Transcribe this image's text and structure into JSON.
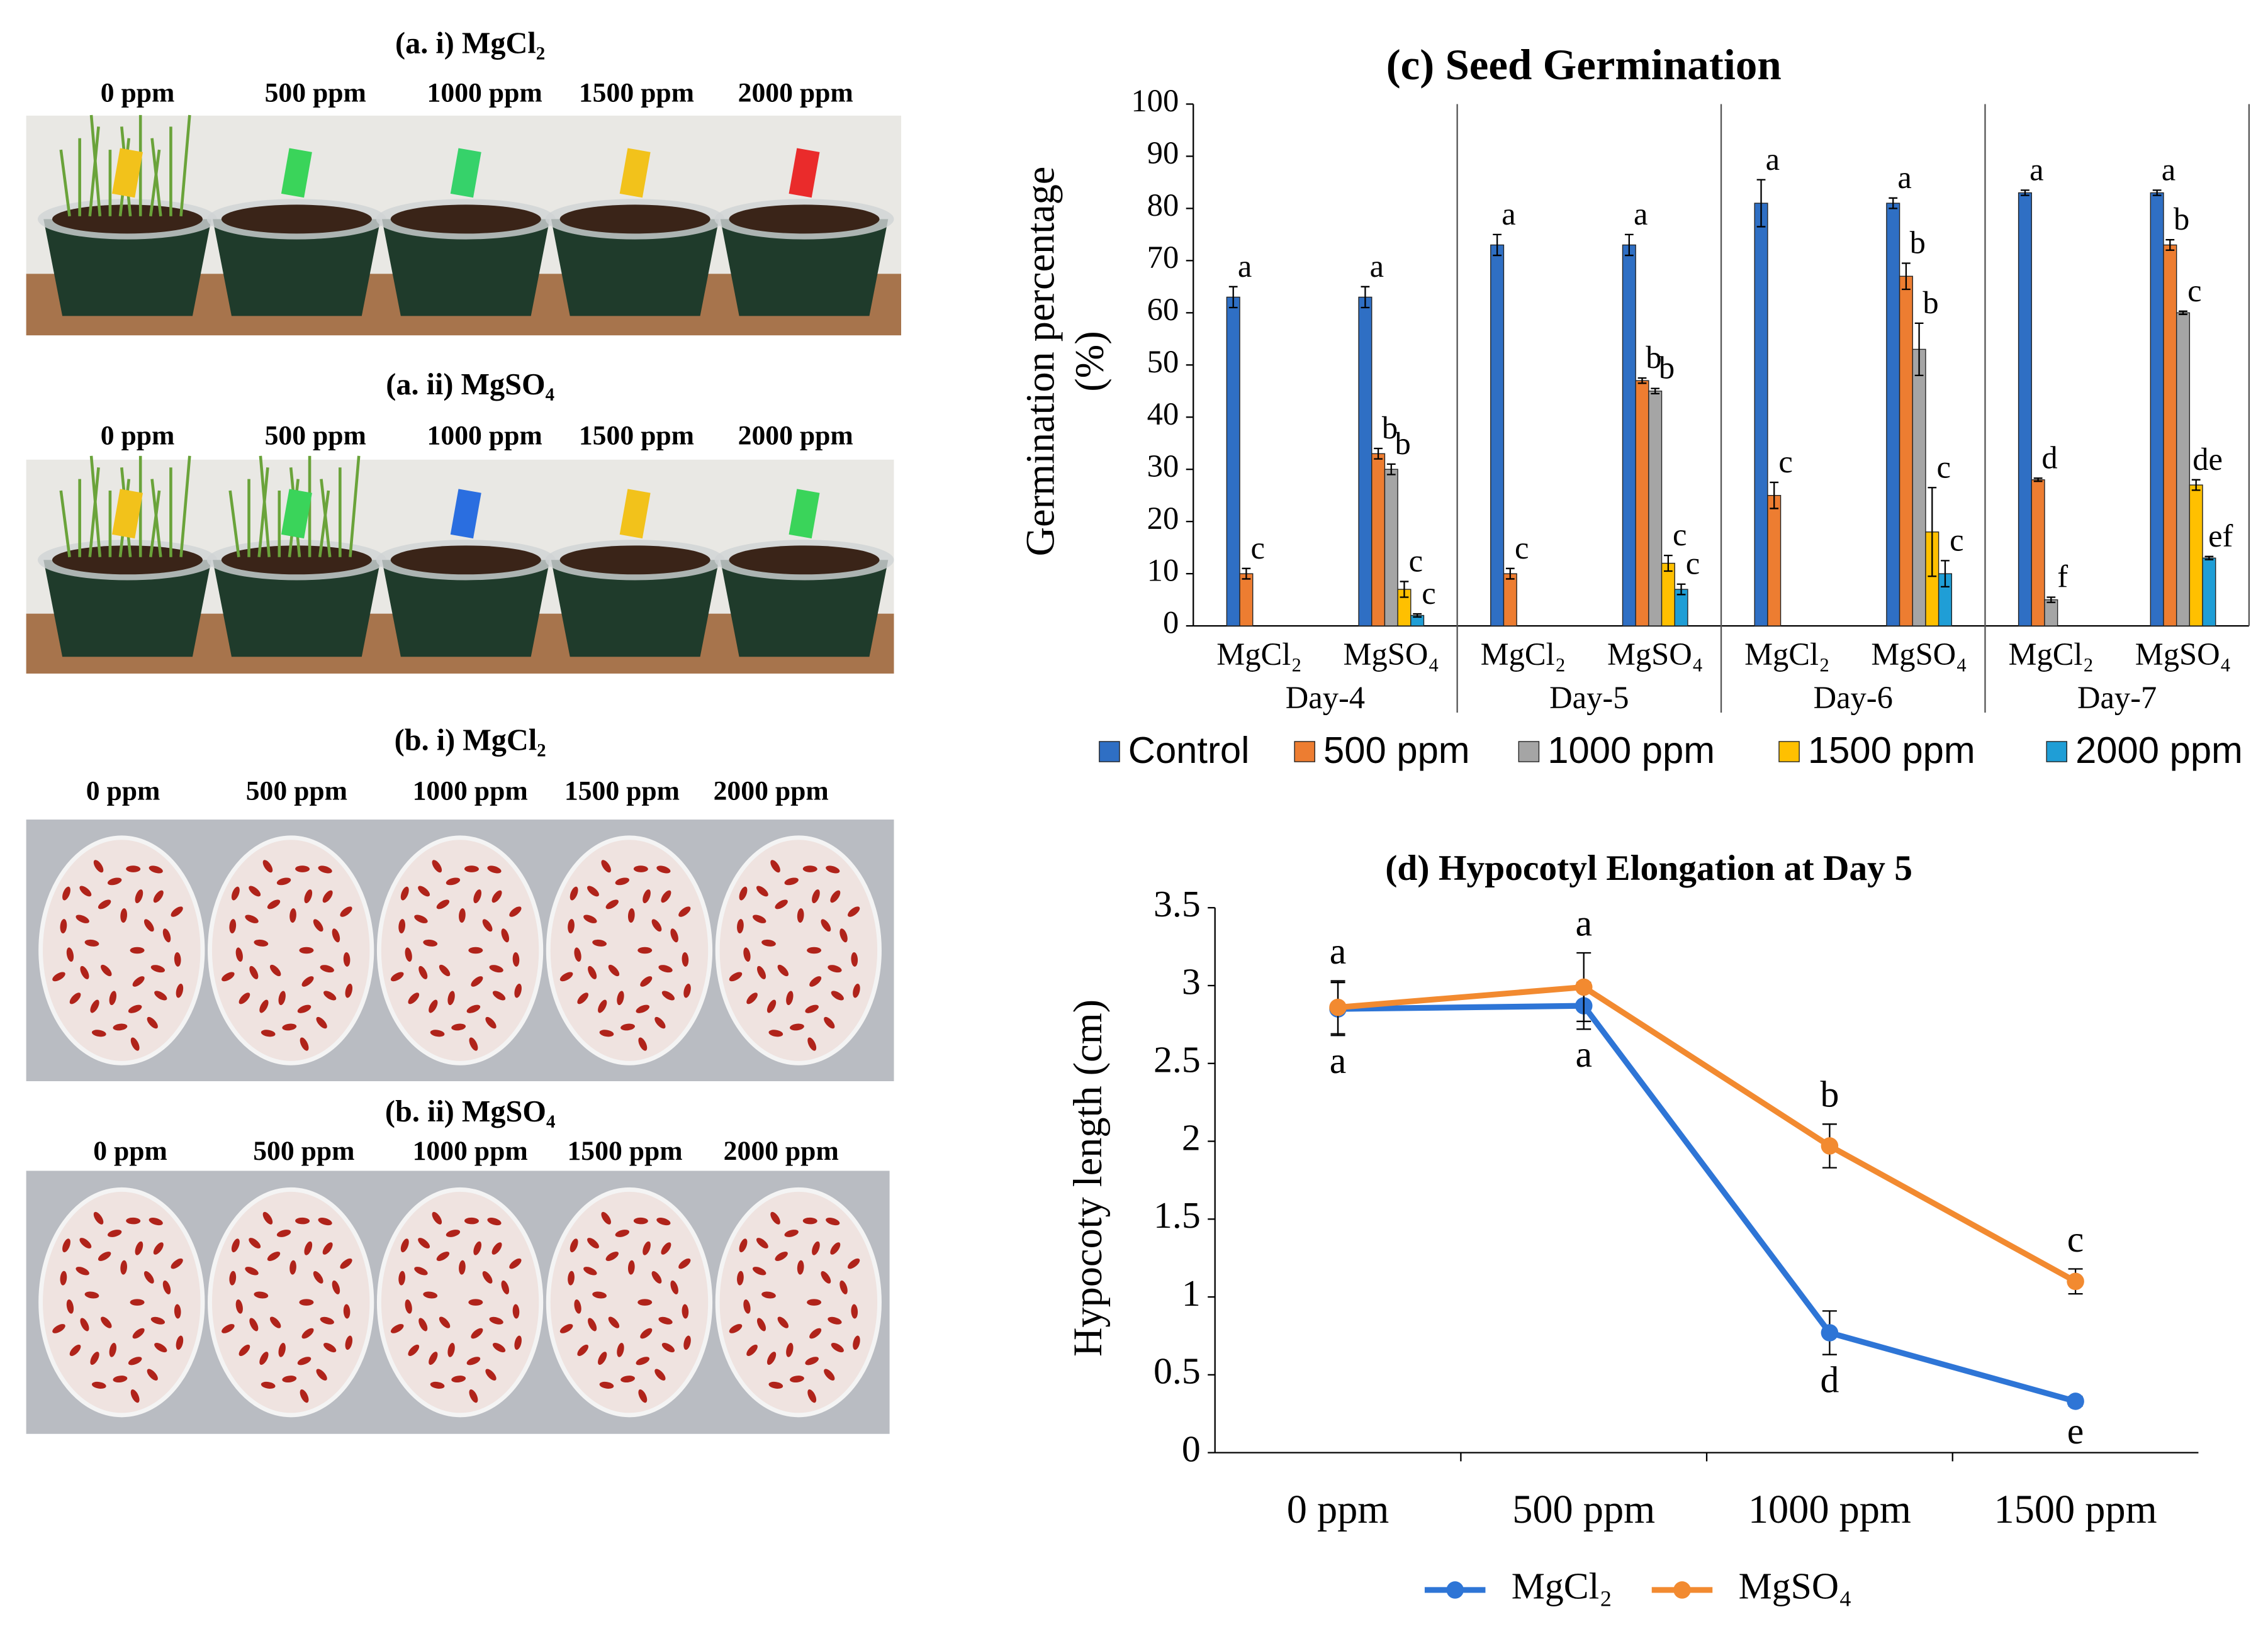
{
  "panels": [
    {
      "title": "(a. i) MgCl₂",
      "labels": [
        "0 ppm",
        "500 ppm",
        "1000 ppm",
        "1500 ppm",
        "2000 ppm"
      ]
    },
    {
      "title": "(a. ii) MgSO₄",
      "labels": [
        "0 ppm",
        "500 ppm",
        "1000 ppm",
        "1500 ppm",
        "2000 ppm"
      ]
    },
    {
      "title": "(b. i) MgCl₂",
      "labels": [
        "0 ppm",
        "500 ppm",
        "1000 ppm",
        "1500 ppm",
        "2000 ppm"
      ]
    },
    {
      "title": "(b. ii) MgSO₄",
      "labels": [
        "0 ppm",
        "500 ppm",
        "1000 ppm",
        "1500 ppm",
        "2000 ppm"
      ]
    }
  ],
  "chart_data": [
    {
      "type": "bar",
      "title": "(c) Seed Germination",
      "y_label": [
        "Germination  percentage",
        "(%)"
      ],
      "categories": [
        "MgCl₂",
        "MgSO₄",
        "MgCl₂",
        "MgSO₄",
        "MgCl₂",
        "MgSO₄",
        "MgCl₂",
        "MgSO₄"
      ],
      "groups": [
        "Day-4",
        "Day-5",
        "Day-6",
        "Day-7"
      ],
      "ylim": [
        0,
        100
      ],
      "yticks": [
        0,
        10,
        20,
        30,
        40,
        50,
        60,
        70,
        80,
        90,
        100
      ],
      "legend": "bottom",
      "series": [
        {
          "name": "Control",
          "color": "#2f6fc4",
          "values": [
            63,
            63,
            73,
            73,
            81,
            81,
            83,
            83
          ],
          "errors": [
            2,
            2,
            2,
            2,
            4.5,
            1,
            0.5,
            0.5
          ],
          "letters": [
            "a",
            "a",
            "a",
            "a",
            "a",
            "a",
            "a",
            "a"
          ]
        },
        {
          "name": "500 ppm",
          "color": "#ed7d31",
          "values": [
            10,
            33,
            10,
            47,
            25,
            67,
            28,
            73
          ],
          "errors": [
            1,
            1,
            1,
            0.5,
            2.5,
            2.5,
            0.3,
            1
          ],
          "letters": [
            "c",
            "b",
            "c",
            "b",
            "c",
            "b",
            "d",
            "b"
          ]
        },
        {
          "name": "1000 ppm",
          "color": "#a5a5a5",
          "values": [
            0,
            30,
            0,
            45,
            0,
            53,
            5,
            60
          ],
          "errors": [
            0,
            1,
            0,
            0.5,
            0,
            5,
            0.5,
            0.3
          ],
          "letters": [
            null,
            "b",
            null,
            "b",
            null,
            "b",
            "f",
            "c"
          ]
        },
        {
          "name": "1500 ppm",
          "color": "#ffc000",
          "values": [
            0,
            7,
            0,
            12,
            0,
            18,
            0,
            27
          ],
          "errors": [
            0,
            1.5,
            0,
            1.5,
            0,
            8.5,
            0,
            1
          ],
          "letters": [
            null,
            "c",
            null,
            "c",
            null,
            "c",
            null,
            "de"
          ]
        },
        {
          "name": "2000 ppm",
          "color": "#1f9ed6",
          "values": [
            0,
            2,
            0,
            7,
            0,
            10,
            0,
            13
          ],
          "errors": [
            0,
            0.3,
            0,
            1,
            0,
            2.5,
            0,
            0.3
          ],
          "letters": [
            null,
            "c",
            null,
            "c",
            null,
            "c",
            null,
            "ef"
          ]
        }
      ]
    },
    {
      "type": "line",
      "title": "(d) Hypocotyl Elongation at Day 5",
      "y_label": "Hypocoty  length (cm)",
      "categories": [
        "0 ppm",
        "500 ppm",
        "1000 ppm",
        "1500 ppm"
      ],
      "ylim": [
        0,
        3.5
      ],
      "yticks": [
        0,
        0.5,
        1,
        1.5,
        2,
        2.5,
        3,
        3.5
      ],
      "legend": "bottom",
      "series": [
        {
          "name": "MgCl₂",
          "color": "#2e75d6",
          "values": [
            2.85,
            2.87,
            0.77,
            0.33
          ],
          "errors": [
            0.17,
            0.15,
            0.14,
            0.03
          ],
          "letters": [
            "a",
            "a",
            "d",
            "e"
          ],
          "letter_position": "below"
        },
        {
          "name": "MgSO₄",
          "color": "#f28a30",
          "values": [
            2.86,
            2.99,
            1.97,
            1.1
          ],
          "errors": [
            0.17,
            0.22,
            0.14,
            0.08
          ],
          "letters": [
            "a",
            "a",
            "b",
            "c"
          ],
          "letter_position": "above"
        }
      ]
    }
  ]
}
